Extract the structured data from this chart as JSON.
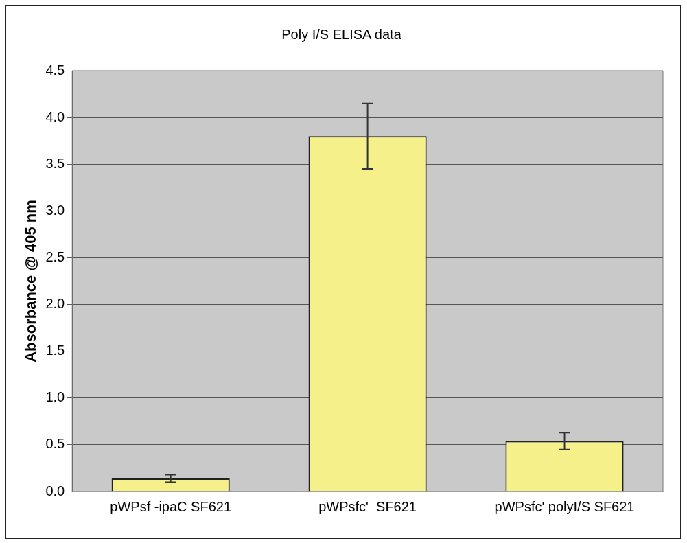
{
  "chart_data": {
    "type": "bar",
    "title": "Poly I/S ELISA data",
    "ylabel": "Absorbance @ 405 nm",
    "categories": [
      "pWPsf -ipaC SF621",
      "pWPsfc'  SF621",
      "pWPsfc' polyI/S SF621"
    ],
    "values": [
      0.14,
      3.8,
      0.54
    ],
    "errors": [
      0.04,
      0.35,
      0.09
    ],
    "color": "#f5f08a",
    "ylim": [
      0,
      4.5
    ],
    "yticks": [
      {
        "value": 0,
        "label": "0.0"
      },
      0.5,
      {
        "value": 1,
        "label": "1.0"
      },
      1.5,
      {
        "value": 2,
        "label": "2.0"
      },
      2.5,
      {
        "value": 3,
        "label": "3.0"
      },
      3.5,
      {
        "value": 4,
        "label": "4.0"
      },
      4.5
    ],
    "grid": "y",
    "legend": false
  }
}
